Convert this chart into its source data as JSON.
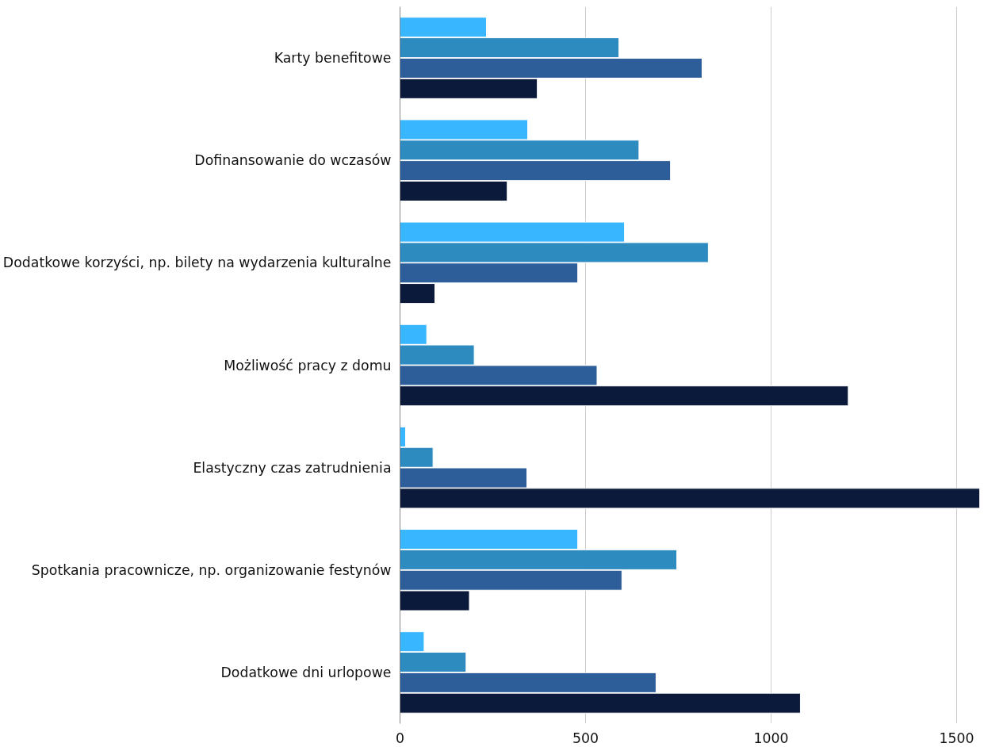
{
  "chart_data": {
    "type": "bar",
    "orientation": "horizontal",
    "categories": [
      "Karty benefitowe",
      "Dofinansowanie do wczasów",
      "Dodatkowe korzyści, np. bilety na wydarzenia kulturalne",
      "Możliwość pracy z domu",
      "Elastyczny czas zatrudnienia",
      "Spotkania pracownicze, np. organizowanie festynów",
      "Dodatkowe dni urlopowe"
    ],
    "series": [
      {
        "color": "#38b6ff",
        "values": [
          233,
          344,
          605,
          72,
          15,
          479,
          65
        ]
      },
      {
        "color": "#2e8bc0",
        "values": [
          590,
          644,
          831,
          200,
          89,
          746,
          178
        ]
      },
      {
        "color": "#2e5e99",
        "values": [
          814,
          729,
          479,
          531,
          342,
          598,
          690
        ]
      },
      {
        "color": "#0b1a3a",
        "values": [
          370,
          289,
          94,
          1208,
          1562,
          187,
          1079
        ]
      }
    ],
    "xlim": [
      0,
      1562
    ],
    "xticks": [
      0,
      500,
      1000,
      1500
    ],
    "grid": "x"
  }
}
